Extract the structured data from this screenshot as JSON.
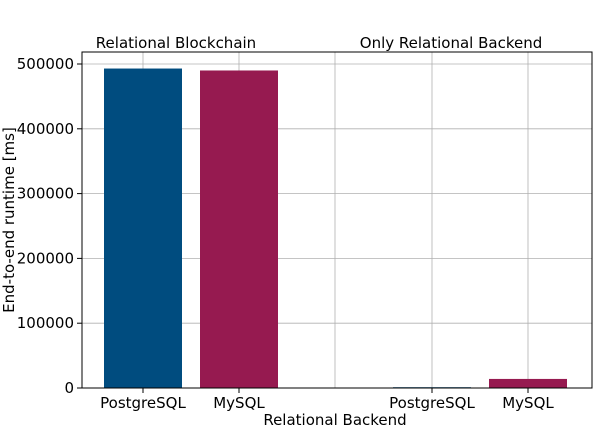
{
  "chart_data": {
    "type": "bar",
    "categories": [
      "PostgreSQL",
      "MySQL",
      "PostgreSQL",
      "MySQL"
    ],
    "groups": [
      {
        "label": "Relational Blockchain",
        "categories": [
          "PostgreSQL",
          "MySQL"
        ],
        "values": [
          493000,
          490000
        ]
      },
      {
        "label": "Only Relational Backend",
        "categories": [
          "PostgreSQL",
          "MySQL"
        ],
        "values": [
          1200,
          14000
        ]
      }
    ],
    "values": [
      493000,
      490000,
      1200,
      14000
    ],
    "bar_colors": [
      "#004c7f",
      "#961a50",
      "#004c7f",
      "#961a50"
    ],
    "xlabel": "Relational Backend",
    "ylabel": "End-to-end runtime [ms]",
    "ylim": [
      0,
      500000
    ],
    "yticks": [
      0,
      100000,
      200000,
      300000,
      400000,
      500000
    ],
    "ytick_labels": [
      "0",
      "100000",
      "200000",
      "300000",
      "400000",
      "500000"
    ],
    "grid": true
  }
}
